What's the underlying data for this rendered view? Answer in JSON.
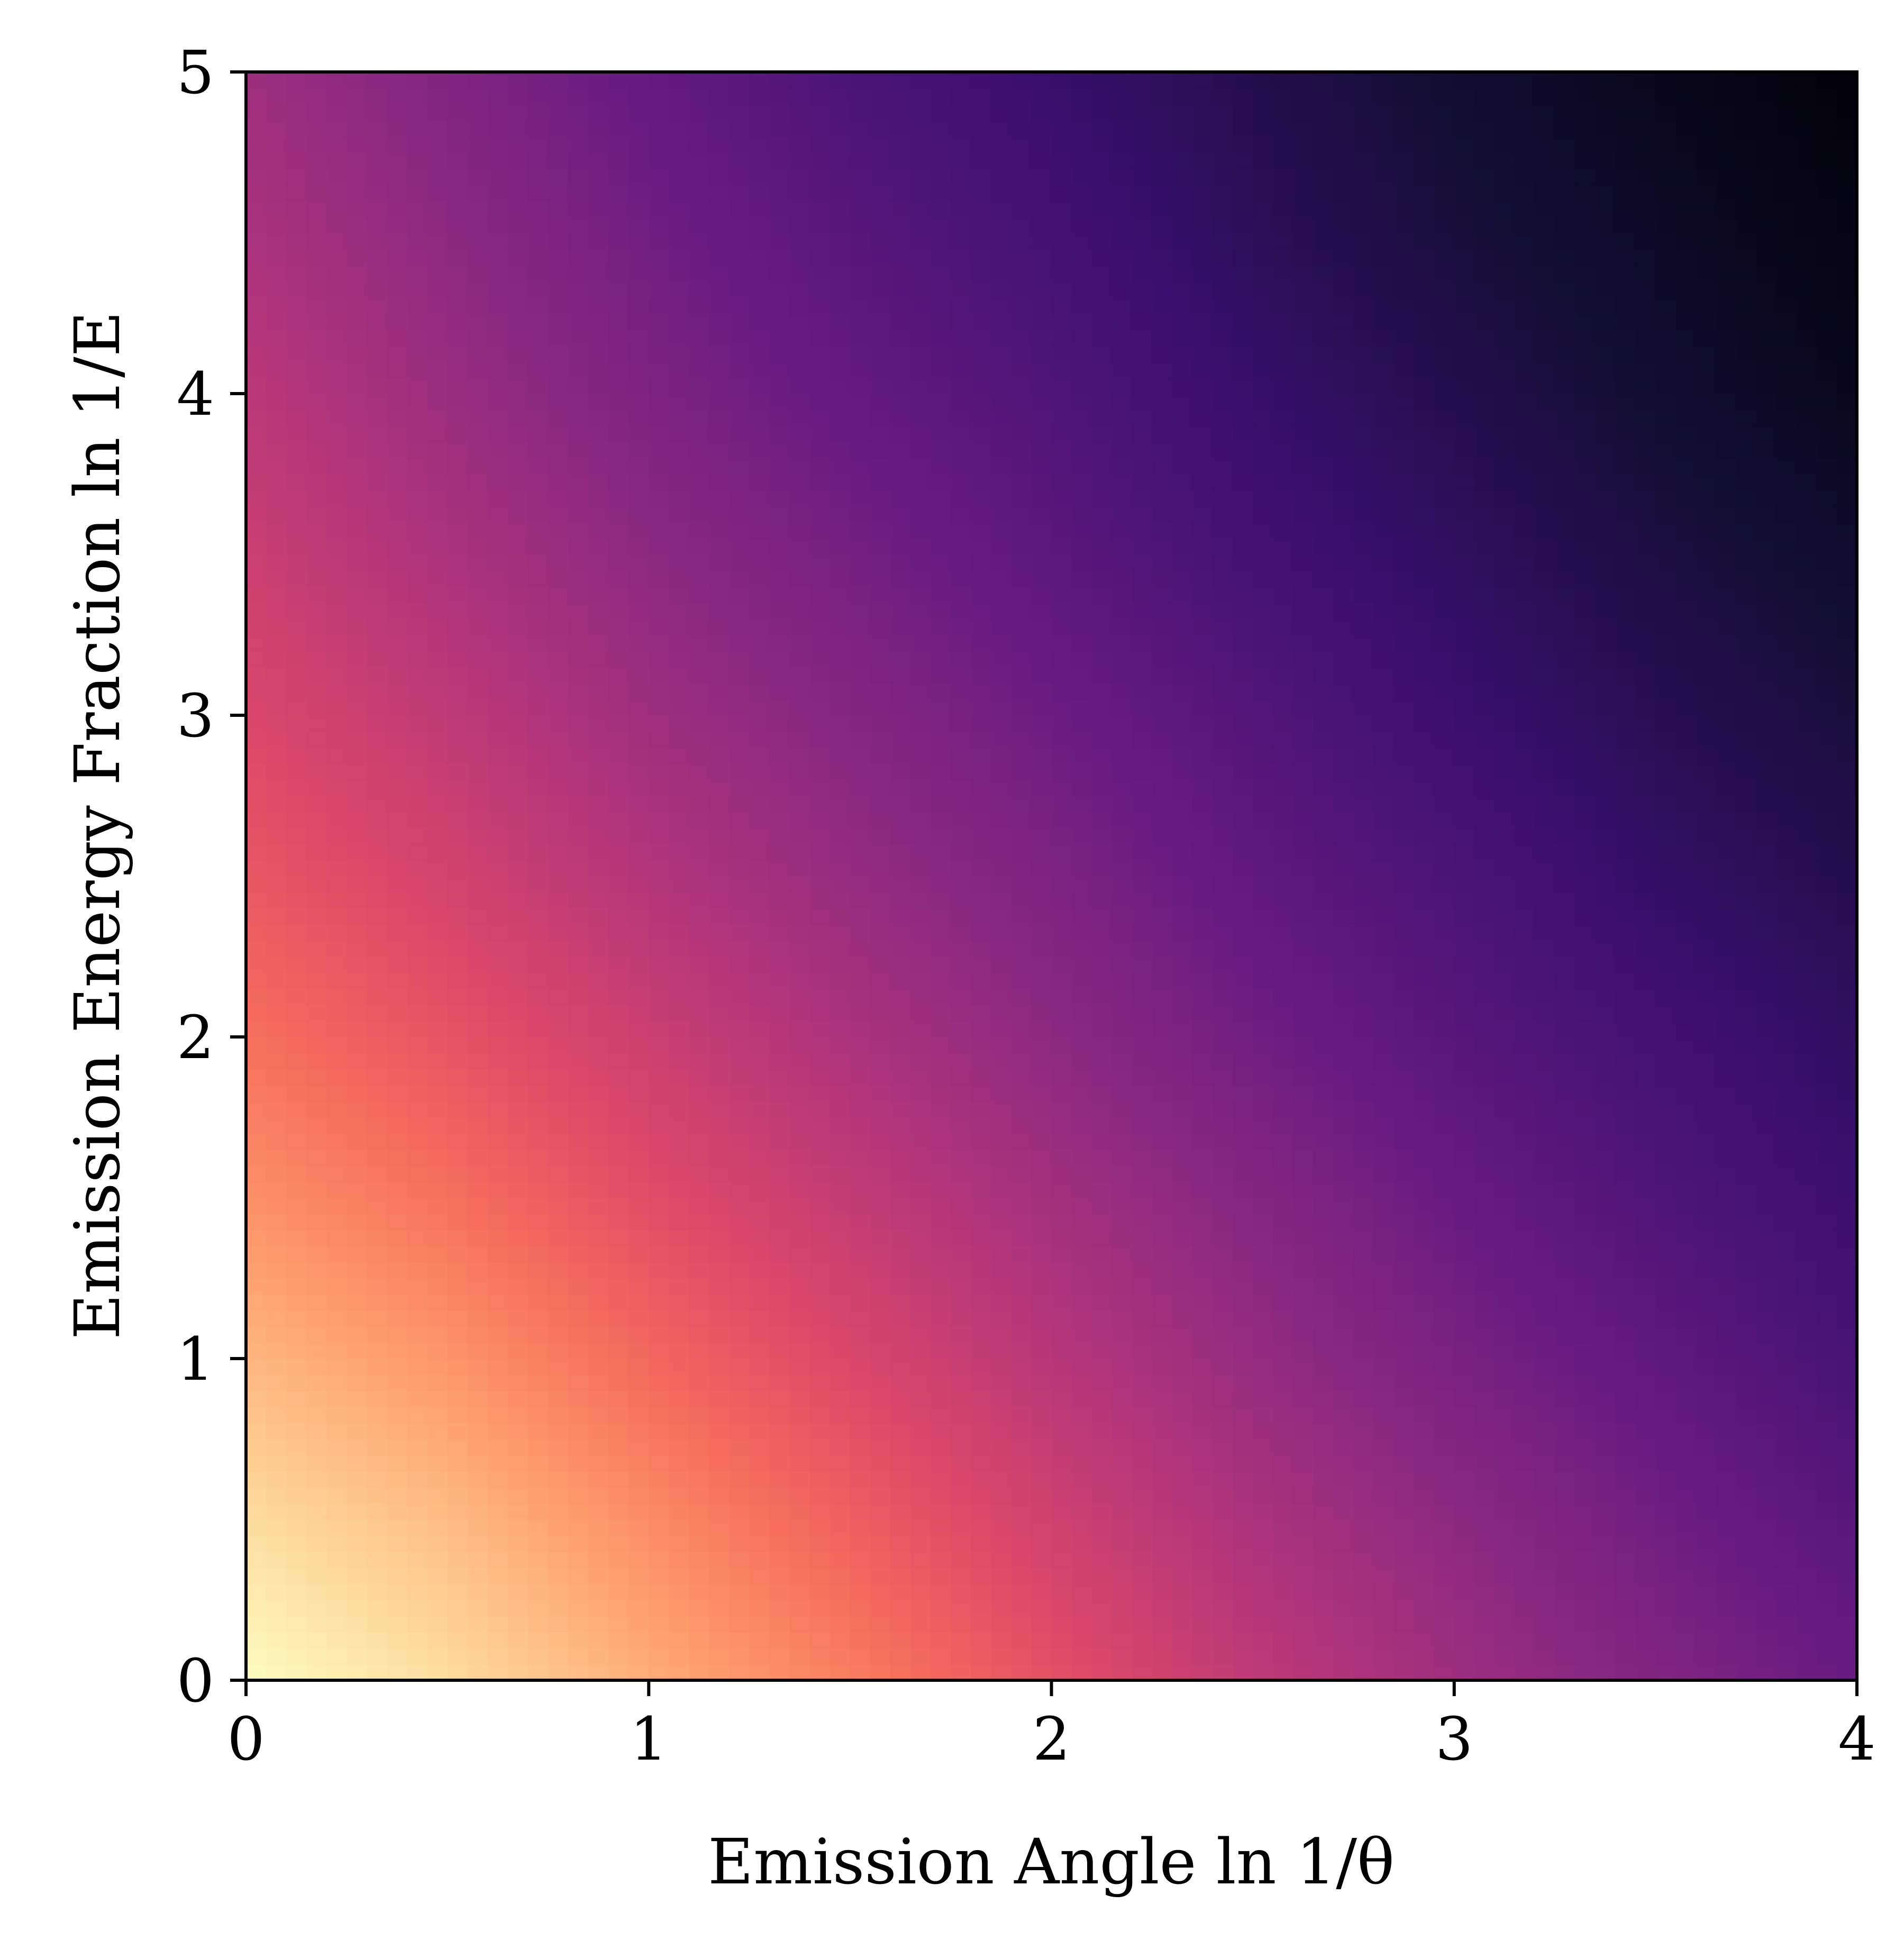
{
  "chart_data": {
    "type": "heatmap",
    "title": "",
    "xlabel": "Emission Angle ln 1/θ",
    "ylabel": "Emission Energy Fraction ln 1/E",
    "xlim": [
      0,
      4
    ],
    "ylim": [
      0,
      5
    ],
    "xticks": [
      "0",
      "1",
      "2",
      "3",
      "4"
    ],
    "yticks": [
      "0",
      "1",
      "2",
      "3",
      "4",
      "5"
    ],
    "colormap": "magma",
    "colorbar": false,
    "grid": false,
    "description_of_field": "smooth gradient, brightest (pale yellow) at x=0,y=0, darkest (black) at x=4,y=5",
    "x": [
      0,
      0.5,
      1,
      1.5,
      2,
      2.5,
      3,
      3.5,
      4
    ],
    "y": [
      0,
      0.5,
      1,
      1.5,
      2,
      2.5,
      3,
      3.5,
      4,
      4.5,
      5
    ],
    "z": [
      [
        1.0,
        0.93,
        0.83,
        0.73,
        0.62,
        0.52,
        0.44,
        0.37,
        0.31
      ],
      [
        0.93,
        0.86,
        0.76,
        0.66,
        0.56,
        0.47,
        0.4,
        0.33,
        0.27
      ],
      [
        0.85,
        0.78,
        0.68,
        0.59,
        0.5,
        0.42,
        0.35,
        0.29,
        0.23
      ],
      [
        0.77,
        0.7,
        0.61,
        0.53,
        0.45,
        0.38,
        0.31,
        0.25,
        0.2
      ],
      [
        0.7,
        0.63,
        0.55,
        0.47,
        0.4,
        0.33,
        0.27,
        0.22,
        0.17
      ],
      [
        0.64,
        0.57,
        0.49,
        0.42,
        0.36,
        0.29,
        0.24,
        0.18,
        0.14
      ],
      [
        0.59,
        0.52,
        0.44,
        0.38,
        0.32,
        0.26,
        0.2,
        0.15,
        0.11
      ],
      [
        0.55,
        0.47,
        0.4,
        0.34,
        0.28,
        0.22,
        0.17,
        0.12,
        0.08
      ],
      [
        0.51,
        0.43,
        0.36,
        0.3,
        0.25,
        0.19,
        0.14,
        0.09,
        0.05
      ],
      [
        0.47,
        0.4,
        0.33,
        0.27,
        0.22,
        0.16,
        0.11,
        0.07,
        0.03
      ],
      [
        0.44,
        0.37,
        0.3,
        0.24,
        0.19,
        0.14,
        0.09,
        0.05,
        0.01
      ]
    ]
  }
}
